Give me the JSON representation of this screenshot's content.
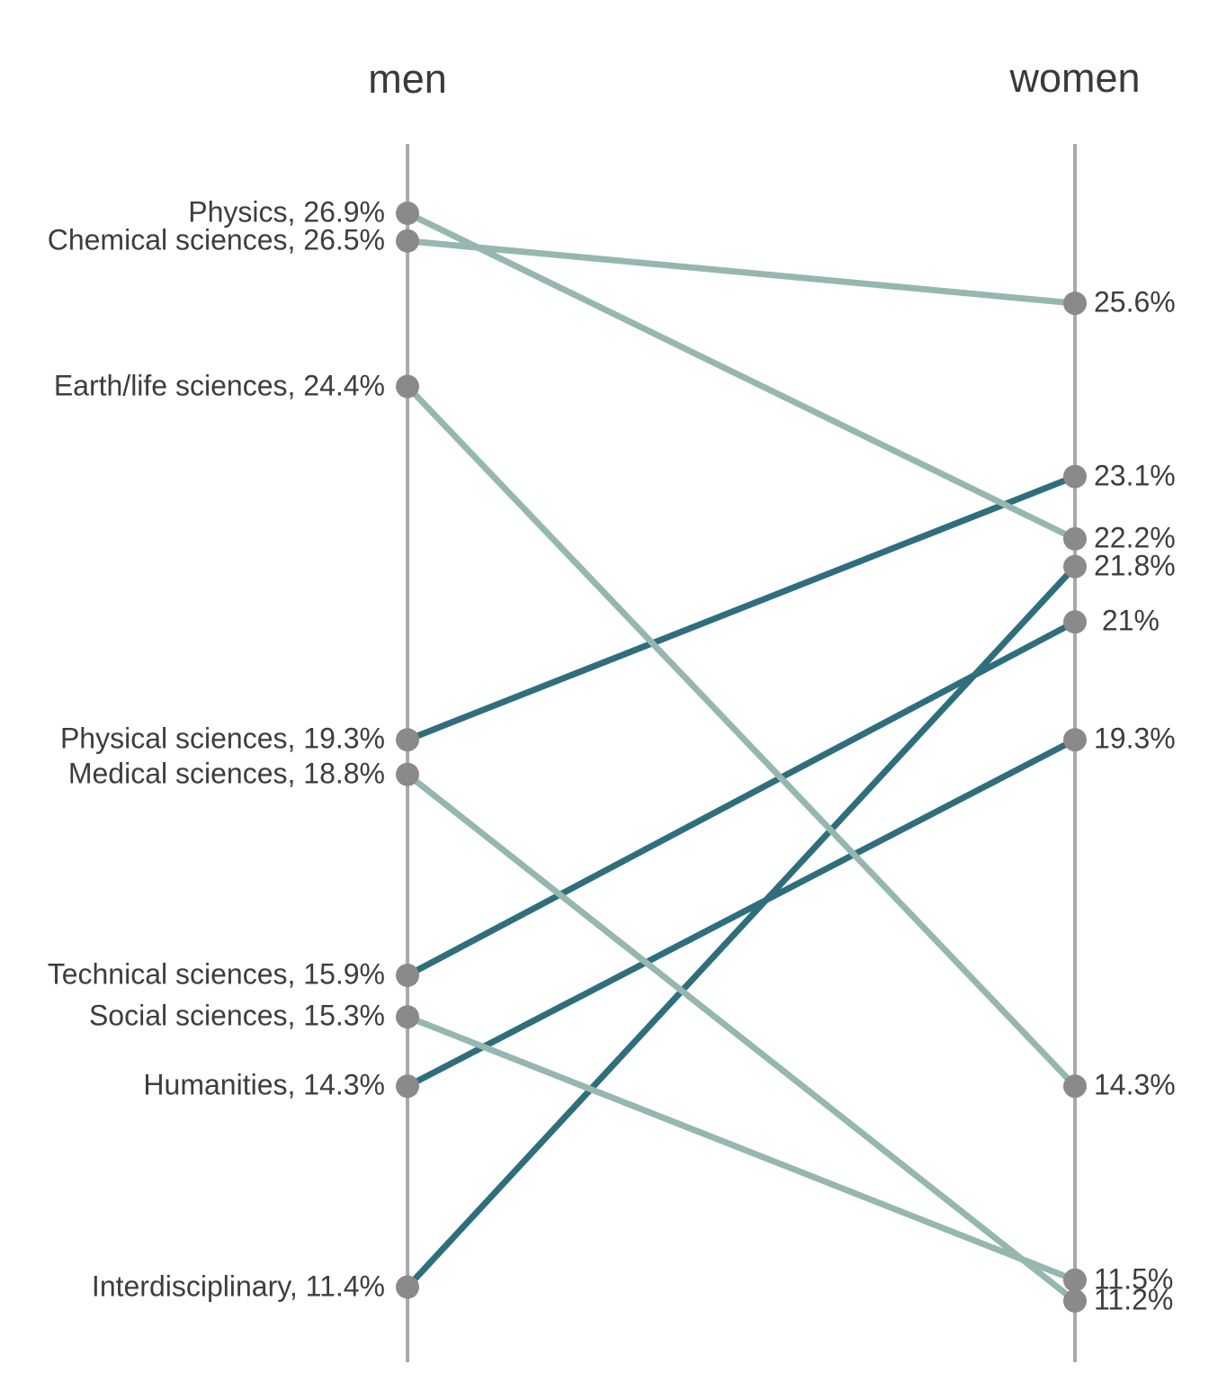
{
  "chart_data": {
    "type": "slopegraph",
    "description": "Slope chart comparing percentages for men vs women across research disciplines",
    "columns": [
      {
        "key": "men",
        "title": "men"
      },
      {
        "key": "women",
        "title": "women"
      }
    ],
    "unit": "%",
    "value_axis": {
      "min": 10.3,
      "max": 27.9,
      "gridlines": false
    },
    "series": [
      {
        "name": "Physics",
        "men": 26.9,
        "women": 22.2,
        "men_label": "Physics, 26.9%",
        "women_label": "22.2%",
        "direction": "decrease"
      },
      {
        "name": "Chemical sciences",
        "men": 26.5,
        "women": 25.6,
        "men_label": "Chemical sciences, 26.5%",
        "women_label": "25.6%",
        "direction": "decrease"
      },
      {
        "name": "Earth/life sciences",
        "men": 24.4,
        "women": 14.3,
        "men_label": "Earth/life sciences, 24.4%",
        "women_label": "14.3%",
        "direction": "decrease"
      },
      {
        "name": "Physical sciences",
        "men": 19.3,
        "women": 23.1,
        "men_label": "Physical sciences, 19.3%",
        "women_label": "23.1%",
        "direction": "increase"
      },
      {
        "name": "Medical sciences",
        "men": 18.8,
        "women": 11.2,
        "men_label": "Medical sciences, 18.8%",
        "women_label": "11.2%",
        "direction": "decrease"
      },
      {
        "name": "Technical sciences",
        "men": 15.9,
        "women": 21.0,
        "men_label": "Technical sciences, 15.9%",
        "women_label": " 21%",
        "direction": "increase"
      },
      {
        "name": "Social sciences",
        "men": 15.3,
        "women": 11.5,
        "men_label": "Social sciences, 15.3%",
        "women_label": "11.5%",
        "direction": "decrease"
      },
      {
        "name": "Humanities",
        "men": 14.3,
        "women": 19.3,
        "men_label": "Humanities, 14.3%",
        "women_label": "19.3%",
        "direction": "increase"
      },
      {
        "name": "Interdisciplinary",
        "men": 11.4,
        "women": 21.8,
        "men_label": "Interdisciplinary, 11.4%",
        "women_label": "21.8%",
        "direction": "increase"
      }
    ],
    "colors": {
      "increase_line": "#2f6e7c",
      "decrease_line": "#95b7af",
      "dot": "#8a8a8a",
      "axis": "#a9a9a9",
      "label_text": "#3d3d3d",
      "title_text": "#3a3a3a",
      "background": "#ffffff"
    }
  }
}
